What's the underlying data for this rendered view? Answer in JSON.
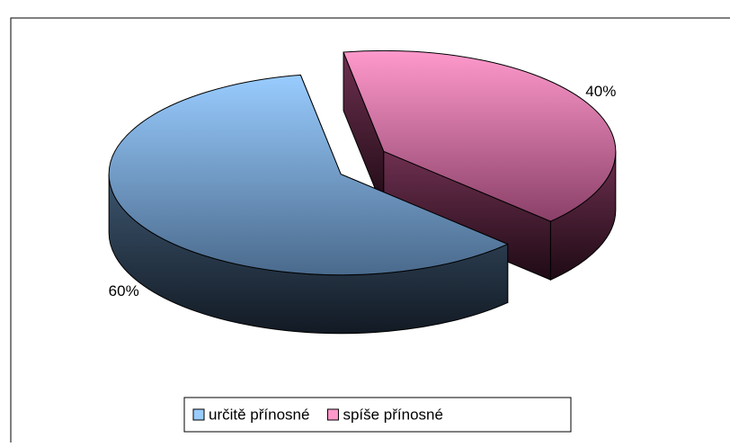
{
  "chart_data": {
    "type": "pie",
    "categories": [
      "určitě přínosné",
      "spíše přínosné"
    ],
    "values": [
      60,
      40
    ],
    "value_labels": [
      "60%",
      "40%"
    ],
    "colors": [
      "#99ccff",
      "#ff99cc"
    ],
    "legend": "bottom"
  }
}
